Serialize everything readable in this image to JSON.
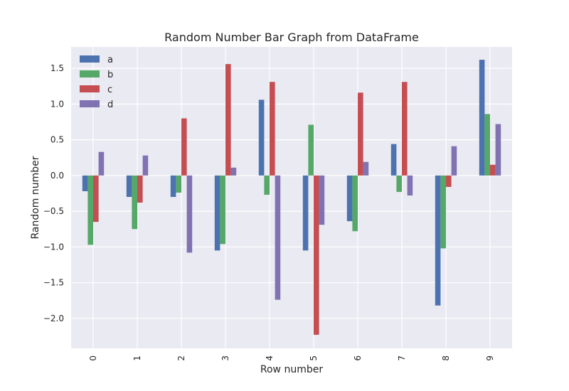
{
  "chart_data": {
    "type": "bar",
    "title": "Random Number Bar Graph from DataFrame",
    "xlabel": "Row number",
    "ylabel": "Random number",
    "categories": [
      "0",
      "1",
      "2",
      "3",
      "4",
      "5",
      "6",
      "7",
      "8",
      "9"
    ],
    "ylim": [
      -2.42,
      1.8
    ],
    "yticks": [
      -2.0,
      -1.5,
      -1.0,
      -0.5,
      0.0,
      0.5,
      1.0,
      1.5
    ],
    "ytick_labels": [
      "−2.0",
      "−1.5",
      "−1.0",
      "−0.5",
      "0.0",
      "0.5",
      "1.0",
      "1.5"
    ],
    "grid": true,
    "legend_position": "top-left",
    "background_color": "#eaeaf2",
    "series": [
      {
        "name": "a",
        "color": "#4c72b0",
        "values": [
          -0.22,
          -0.3,
          -0.3,
          -1.05,
          1.06,
          -1.05,
          -0.64,
          0.44,
          -1.82,
          1.62
        ]
      },
      {
        "name": "b",
        "color": "#55a868",
        "values": [
          -0.97,
          -0.75,
          -0.24,
          -0.96,
          -0.27,
          0.71,
          -0.78,
          -0.23,
          -1.02,
          0.86
        ]
      },
      {
        "name": "c",
        "color": "#c44e52",
        "values": [
          -0.65,
          -0.38,
          0.8,
          1.56,
          1.31,
          -2.23,
          1.16,
          1.31,
          -0.16,
          0.15
        ]
      },
      {
        "name": "d",
        "color": "#8172b2",
        "values": [
          0.33,
          0.28,
          -1.08,
          0.11,
          -1.74,
          -0.69,
          0.19,
          -0.28,
          0.41,
          0.72
        ]
      }
    ]
  }
}
